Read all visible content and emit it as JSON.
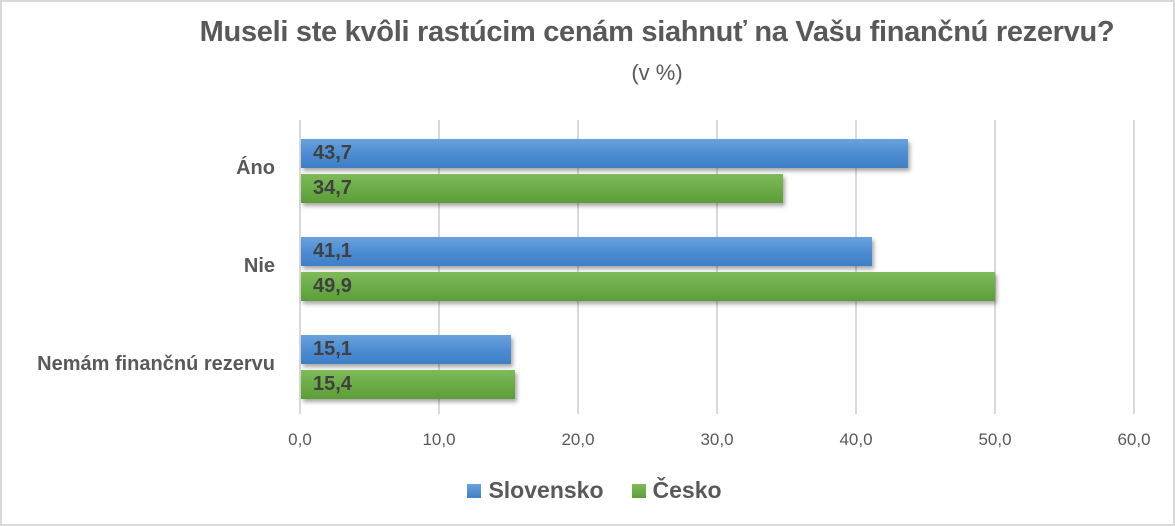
{
  "chart_data": {
    "type": "bar",
    "orientation": "horizontal",
    "title": "Museli ste kvôli rastúcim cenám siahnuť na Vašu finančnú rezervu?",
    "subtitle": "(v %)",
    "categories": [
      "Áno",
      "Nie",
      "Nemám finančnú rezervu"
    ],
    "series": [
      {
        "name": "Slovensko",
        "color": "#4a8bd2",
        "values": [
          43.7,
          41.1,
          15.1
        ],
        "labels": [
          "43,7",
          "41,1",
          "15,1"
        ]
      },
      {
        "name": "Česko",
        "color": "#6aab45",
        "values": [
          34.7,
          49.9,
          15.4
        ],
        "labels": [
          "34,7",
          "49,9",
          "15,4"
        ]
      }
    ],
    "xlim": [
      0,
      60
    ],
    "xticks": [
      "0,0",
      "10,0",
      "20,0",
      "30,0",
      "40,0",
      "50,0",
      "60,0"
    ],
    "grid": "vertical",
    "legend_position": "bottom",
    "xlabel": "",
    "ylabel": ""
  }
}
